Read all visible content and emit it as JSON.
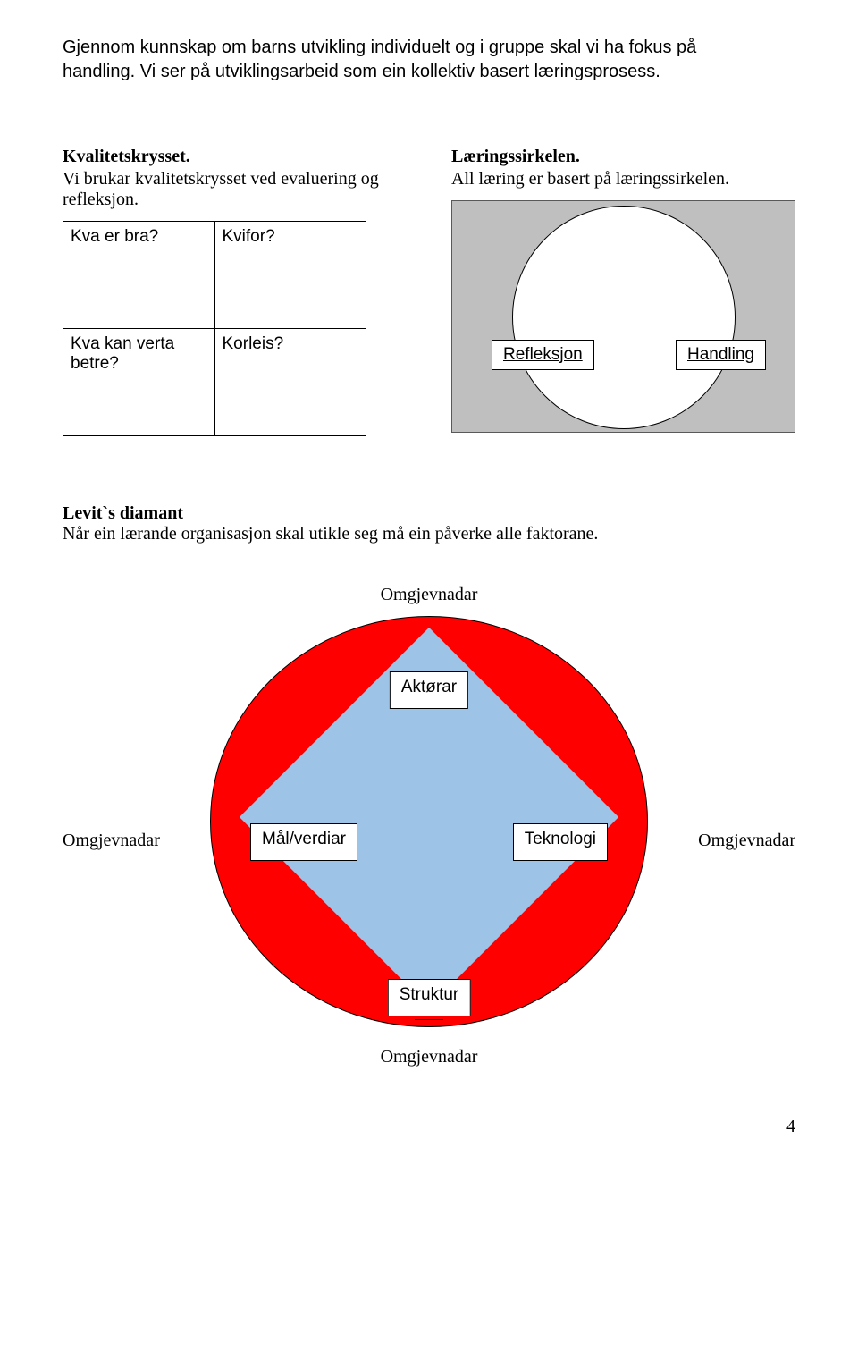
{
  "intro": {
    "line1": "Gjennom kunnskap om barns utvikling individuelt og i gruppe skal vi ha fokus på",
    "line2": "handling. Vi ser på utviklingsarbeid som ein kollektiv basert læringsprosess."
  },
  "kvalitetskryss": {
    "heading": "Kvalitetskrysset.",
    "sub": "Vi brukar kvalitetskrysset ved evaluering og refleksjon.",
    "cells": {
      "a": "Kva er bra?",
      "b": "Kvifor?",
      "c": "Kva kan verta betre?",
      "d": "Korleis?"
    }
  },
  "laeringssirkel": {
    "heading": "Læringssirkelen.",
    "sub": "All læring er basert på læringssirkelen.",
    "left_label": "Refleksjon",
    "right_label": "Handling",
    "bg_color": "#bfbfbf",
    "circle_color": "#ffffff"
  },
  "levitt": {
    "heading": "Levit`s diamant",
    "sub": "Når ein lærande organisasjon skal utikle seg må ein påverke alle faktorane.",
    "outer_label": "Omgjevnadar",
    "top": "Aktørar",
    "left": "Mål/verdiar",
    "right": "Teknologi",
    "bottom": "Struktur",
    "circle_color": "#ff0000",
    "diamond_color": "#9dc3e6"
  },
  "page_num": "4"
}
